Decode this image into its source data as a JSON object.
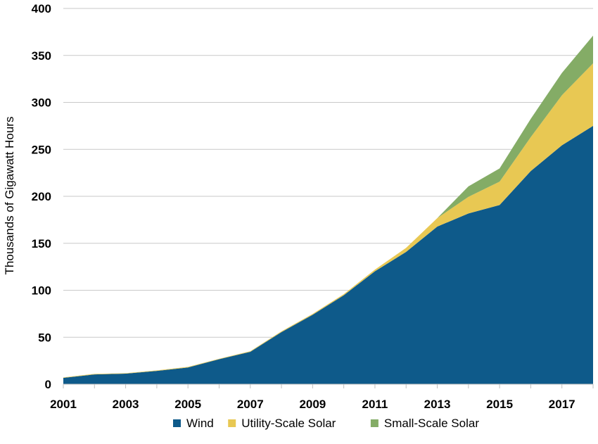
{
  "chart_data": {
    "type": "area",
    "stacked": true,
    "ylabel": "Thousands of Gigawatt Hours",
    "xlabel": "",
    "x": [
      2001,
      2002,
      2003,
      2004,
      2005,
      2006,
      2007,
      2008,
      2009,
      2010,
      2011,
      2012,
      2013,
      2014,
      2015,
      2016,
      2017,
      2018
    ],
    "xticks": [
      "2001",
      "2003",
      "2005",
      "2007",
      "2009",
      "2011",
      "2013",
      "2015",
      "2017"
    ],
    "ylim": [
      0,
      400
    ],
    "yticks": [
      "0",
      "50",
      "100",
      "150",
      "200",
      "250",
      "300",
      "350",
      "400"
    ],
    "grid": "horizontal",
    "legend_position": "bottom",
    "series": [
      {
        "name": "Wind",
        "color": "#0E5A8A",
        "values": [
          6.7,
          10.4,
          11.2,
          14.1,
          17.8,
          26.6,
          34.5,
          55.4,
          73.9,
          94.7,
          120.2,
          140.8,
          167.8,
          181.7,
          190.7,
          226.9,
          254.3,
          275.0
        ]
      },
      {
        "name": "Utility-Scale Solar",
        "color": "#E8C853",
        "values": [
          0.5,
          0.6,
          0.5,
          0.6,
          0.6,
          0.5,
          0.6,
          0.9,
          0.9,
          1.2,
          1.8,
          4.3,
          9.0,
          17.7,
          24.9,
          36.1,
          53.3,
          66.6
        ]
      },
      {
        "name": "Small-Scale Solar",
        "color": "#84AC66",
        "values": [
          0,
          0,
          0,
          0,
          0,
          0,
          0,
          0,
          0,
          0,
          0,
          0,
          0,
          11.2,
          14.1,
          19.5,
          23.8,
          29.5
        ]
      }
    ]
  }
}
